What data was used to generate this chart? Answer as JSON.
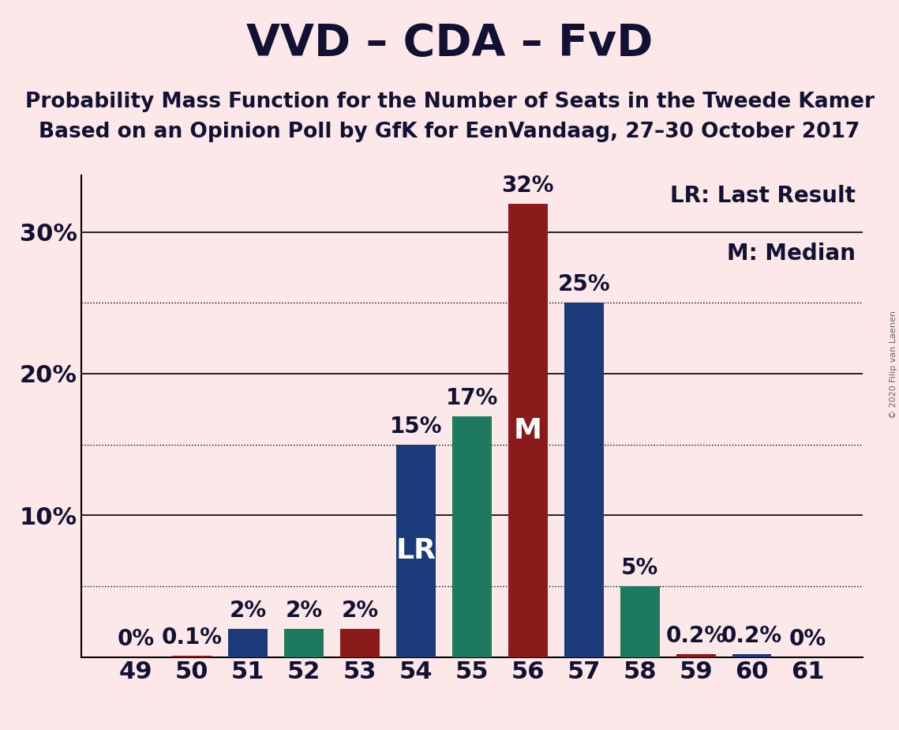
{
  "title": "VVD – CDA – FvD",
  "subtitle1": "Probability Mass Function for the Number of Seats in the Tweede Kamer",
  "subtitle2": "Based on an Opinion Poll by GfK for EenVandaag, 27–30 October 2017",
  "copyright": "© 2020 Filip van Laenen",
  "legend_lr": "LR: Last Result",
  "legend_m": "M: Median",
  "background_color": "#fce8e8",
  "categories": [
    49,
    50,
    51,
    52,
    53,
    54,
    55,
    56,
    57,
    58,
    59,
    60,
    61
  ],
  "values": [
    0,
    0.1,
    2,
    2,
    2,
    15,
    17,
    32,
    25,
    5,
    0.2,
    0.2,
    0
  ],
  "bar_colors_map": {
    "49": "#8b1a1a",
    "50": "#8b1a1a",
    "51": "#1a3a7a",
    "52": "#1d7a5f",
    "53": "#8b1a1a",
    "54": "#1a3a7a",
    "55": "#1d7a5f",
    "56": "#8b1a1a",
    "57": "#1a3a7a",
    "58": "#1d7a5f",
    "59": "#8b1a1a",
    "60": "#1a3a7a",
    "61": "#1a3a7a"
  },
  "lr_seat": 54,
  "median_seat": 56,
  "ylim": [
    0,
    34
  ],
  "solid_yticks": [
    10,
    20,
    30
  ],
  "dotted_yticks": [
    5,
    15,
    25
  ],
  "ytick_labels_map": {
    "10": "10%",
    "20": "20%",
    "30": "30%"
  },
  "title_fontsize": 40,
  "subtitle_fontsize": 19,
  "tick_fontsize": 22,
  "bar_label_fontsize": 20,
  "annotation_fontsize": 26,
  "legend_fontsize": 20,
  "navy": "#1a3a7a",
  "teal": "#1d7a5f",
  "darkred": "#8b1a1a",
  "text_color": "#111133"
}
